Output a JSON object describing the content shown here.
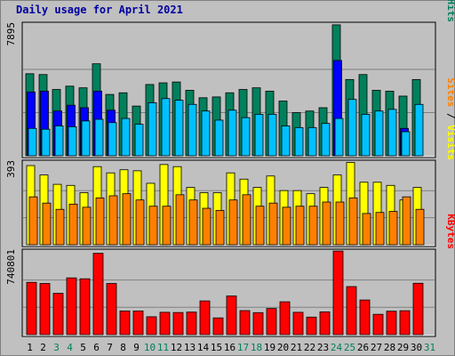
{
  "title": "Daily usage for April 2021",
  "colors": {
    "hits": "#00805c",
    "files": "#0000ff",
    "pages": "#00c0ff",
    "visits": "#ffff00",
    "sites": "#ff8000",
    "kbytes": "#ff0000",
    "weekend_label": "#00805c",
    "weekday_label": "#000000"
  },
  "chart_data": [
    {
      "type": "bar",
      "panel": "top",
      "ymax_label": "7895",
      "ylim": [
        0,
        7895
      ],
      "right_labels": [
        {
          "text": "Hits",
          "color": "#00805c"
        },
        {
          "text": " / ",
          "color": "#000000"
        },
        {
          "text": "Files",
          "color": "#0000ff"
        },
        {
          "text": " / ",
          "color": "#000000"
        },
        {
          "text": "Pages",
          "color": "#00c0ff"
        }
      ],
      "categories": [
        "1",
        "2",
        "3",
        "4",
        "5",
        "6",
        "7",
        "8",
        "9",
        "10",
        "11",
        "12",
        "13",
        "14",
        "15",
        "16",
        "17",
        "18",
        "19",
        "20",
        "21",
        "22",
        "23",
        "24",
        "25",
        "26",
        "27",
        "28",
        "29",
        "30",
        "31"
      ],
      "weekend": [
        false,
        false,
        true,
        true,
        false,
        false,
        false,
        false,
        false,
        true,
        true,
        false,
        false,
        false,
        false,
        false,
        true,
        true,
        false,
        false,
        false,
        false,
        false,
        true,
        true,
        false,
        false,
        false,
        false,
        false,
        true
      ],
      "series": [
        {
          "name": "Hits",
          "values": [
            4950,
            4900,
            4000,
            4200,
            4100,
            5550,
            3700,
            3800,
            3000,
            4300,
            4400,
            4450,
            3950,
            3500,
            3550,
            3800,
            4000,
            4100,
            3900,
            3300,
            2600,
            2700,
            2900,
            7900,
            4600,
            4900,
            3950,
            3900,
            3600,
            4600,
            0
          ]
        },
        {
          "name": "Files",
          "values": [
            3850,
            3900,
            2700,
            3050,
            2900,
            3900,
            2750,
            0,
            0,
            0,
            0,
            0,
            0,
            0,
            0,
            0,
            0,
            0,
            0,
            0,
            0,
            0,
            0,
            5750,
            0,
            0,
            0,
            0,
            1650,
            0,
            0
          ]
        },
        {
          "name": "Pages",
          "values": [
            1650,
            1600,
            1800,
            1750,
            2100,
            2200,
            2000,
            2250,
            1900,
            3200,
            3450,
            3350,
            3100,
            2700,
            2150,
            2750,
            2300,
            2500,
            2500,
            1800,
            1700,
            1700,
            1950,
            2250,
            3400,
            2500,
            2700,
            2800,
            1450,
            3100,
            0
          ]
        }
      ]
    },
    {
      "type": "bar",
      "panel": "middle",
      "ymax_label": "393",
      "ylim": [
        0,
        393
      ],
      "right_labels": [
        {
          "text": "Visits",
          "color": "#ffff00"
        },
        {
          "text": " / ",
          "color": "#000000"
        },
        {
          "text": "Sites",
          "color": "#ff8000"
        }
      ],
      "categories": [
        "1",
        "2",
        "3",
        "4",
        "5",
        "6",
        "7",
        "8",
        "9",
        "10",
        "11",
        "12",
        "13",
        "14",
        "15",
        "16",
        "17",
        "18",
        "19",
        "20",
        "21",
        "22",
        "23",
        "24",
        "25",
        "26",
        "27",
        "28",
        "29",
        "30",
        "31"
      ],
      "series": [
        {
          "name": "Visits",
          "values": [
            380,
            335,
            290,
            285,
            250,
            375,
            345,
            360,
            355,
            295,
            385,
            375,
            275,
            250,
            250,
            345,
            315,
            275,
            330,
            260,
            260,
            245,
            275,
            335,
            395,
            300,
            300,
            285,
            215,
            275,
            0
          ]
        },
        {
          "name": "Sites",
          "values": [
            230,
            200,
            170,
            195,
            180,
            225,
            235,
            245,
            215,
            185,
            185,
            240,
            215,
            175,
            165,
            215,
            240,
            185,
            200,
            180,
            185,
            185,
            205,
            205,
            225,
            150,
            155,
            160,
            230,
            170,
            0
          ]
        }
      ]
    },
    {
      "type": "bar",
      "panel": "bottom",
      "ymax_label": "740801",
      "ylim": [
        0,
        740801
      ],
      "right_labels": [
        {
          "text": "KBytes",
          "color": "#ff0000"
        }
      ],
      "categories": [
        "1",
        "2",
        "3",
        "4",
        "5",
        "6",
        "7",
        "8",
        "9",
        "10",
        "11",
        "12",
        "13",
        "14",
        "15",
        "16",
        "17",
        "18",
        "19",
        "20",
        "21",
        "22",
        "23",
        "24",
        "25",
        "26",
        "27",
        "28",
        "29",
        "30",
        "31"
      ],
      "series": [
        {
          "name": "KBytes",
          "values": [
            468000,
            458000,
            370000,
            508000,
            500000,
            728000,
            458000,
            212000,
            212000,
            160000,
            200000,
            198000,
            202000,
            302000,
            150000,
            346000,
            215000,
            197000,
            234000,
            294000,
            200000,
            157000,
            204000,
            748000,
            430000,
            310000,
            182000,
            210000,
            214000,
            460000,
            0
          ]
        }
      ]
    }
  ]
}
